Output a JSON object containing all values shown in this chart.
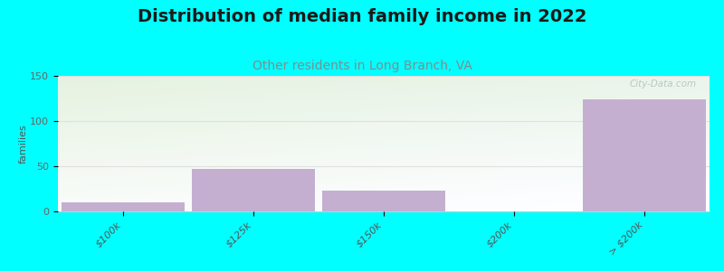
{
  "title": "Distribution of median family income in 2022",
  "subtitle": "Other residents in Long Branch, VA",
  "ylabel": "families",
  "categories": [
    "$100k",
    "$125k",
    "$150k",
    "$200k",
    "> $200k"
  ],
  "values": [
    10,
    47,
    23,
    0,
    124
  ],
  "bar_color": "#c4afd1",
  "ylim": [
    0,
    150
  ],
  "yticks": [
    0,
    50,
    100,
    150
  ],
  "background_color": "#00ffff",
  "plot_bg_topleft": "#e8f5e0",
  "plot_bg_bottomleft": "#c8e8c0",
  "plot_bg_topright": "#f5f5f0",
  "plot_bg_bottomright": "#e8f0e0",
  "title_fontsize": 14,
  "subtitle_fontsize": 10,
  "subtitle_color": "#7a9090",
  "ylabel_fontsize": 8,
  "tick_label_fontsize": 8,
  "watermark": "City-Data.com"
}
